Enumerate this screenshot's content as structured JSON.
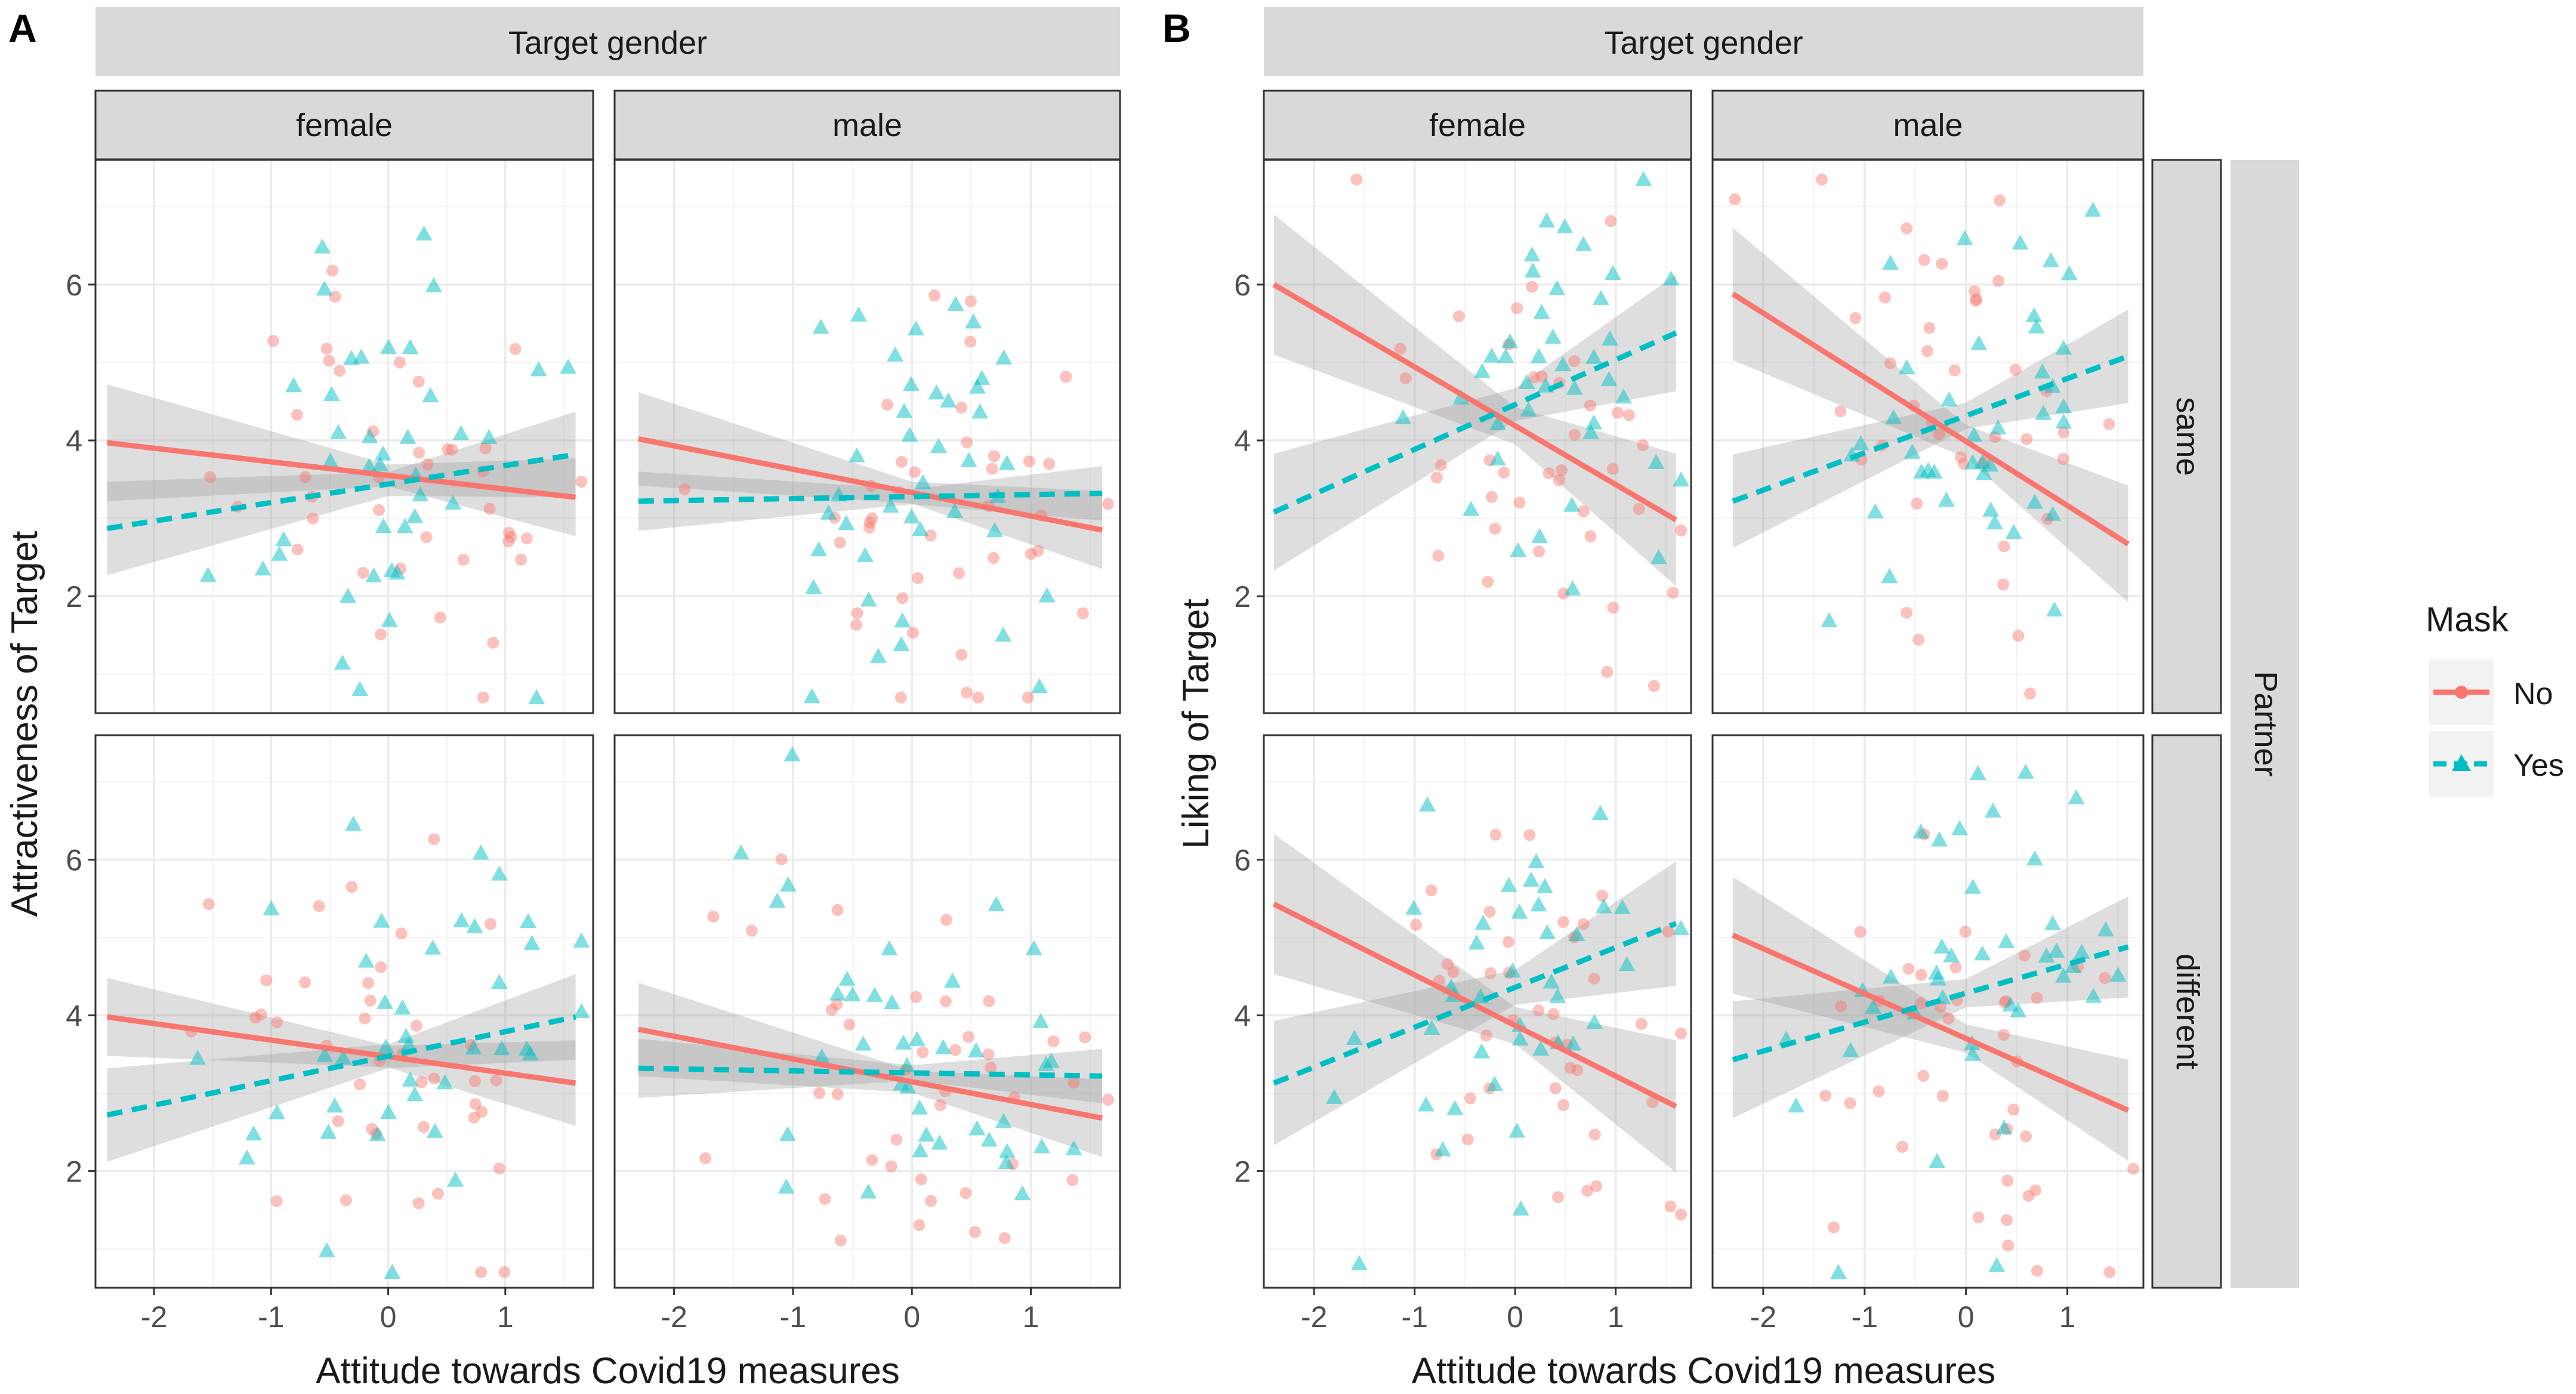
{
  "chart_data": {
    "type": "scatter",
    "title": "",
    "legend": {
      "title": "Mask",
      "placement": "right",
      "entries": [
        {
          "label": "No",
          "color": "#F8766D",
          "marker": "circle",
          "line": "solid"
        },
        {
          "label": "Yes",
          "color": "#00BFC4",
          "marker": "triangle",
          "line": "dashed"
        }
      ]
    },
    "colors": {
      "No": "#F8766D",
      "Yes": "#00BFC4",
      "strip": "#D9D9D9",
      "ribbon": "#999999",
      "grid": "#EBEBEB"
    },
    "x": {
      "label": "Attitude towards Covid19 measures",
      "range": [
        -2.5,
        1.75
      ],
      "ticks": [
        -2,
        -1,
        0,
        1
      ],
      "tick_labels": [
        "-2",
        "-1",
        "0",
        "1"
      ]
    },
    "col_facet": {
      "title": "Target gender",
      "levels": [
        "female",
        "male"
      ]
    },
    "row_facet": {
      "title": "Partner",
      "levels": [
        "same",
        "different"
      ]
    },
    "panels": [
      {
        "id": "A",
        "tag": "A",
        "ylabel": "Attractiveness of Target",
        "ylim": [
          0.5,
          7.6
        ],
        "yticks": [
          2,
          4,
          6
        ],
        "ytick_labels": [
          "2",
          "4",
          "6"
        ],
        "facets": [
          {
            "gender": "female",
            "partner": "same",
            "fits": {
              "No": {
                "x0": -2.4,
                "y0": 3.97,
                "x1": 1.6,
                "y1": 3.27,
                "ci0": 0.75,
                "ci1": 0.5
              },
              "Yes": {
                "x0": -2.4,
                "y0": 2.87,
                "x1": 1.6,
                "y1": 3.82,
                "ci0": 0.6,
                "ci1": 0.55
              }
            }
          },
          {
            "gender": "male",
            "partner": "same",
            "fits": {
              "No": {
                "x0": -2.3,
                "y0": 4.02,
                "x1": 1.6,
                "y1": 2.85,
                "ci0": 0.6,
                "ci1": 0.5
              },
              "Yes": {
                "x0": -2.3,
                "y0": 3.22,
                "x1": 1.6,
                "y1": 3.32,
                "ci0": 0.38,
                "ci1": 0.35
              }
            }
          },
          {
            "gender": "female",
            "partner": "different",
            "fits": {
              "No": {
                "x0": -2.4,
                "y0": 3.98,
                "x1": 1.6,
                "y1": 3.13,
                "ci0": 0.5,
                "ci1": 0.55
              },
              "Yes": {
                "x0": -2.4,
                "y0": 2.72,
                "x1": 1.6,
                "y1": 3.98,
                "ci0": 0.6,
                "ci1": 0.55
              }
            }
          },
          {
            "gender": "male",
            "partner": "different",
            "fits": {
              "No": {
                "x0": -2.3,
                "y0": 3.82,
                "x1": 1.6,
                "y1": 2.68,
                "ci0": 0.6,
                "ci1": 0.5
              },
              "Yes": {
                "x0": -2.3,
                "y0": 3.32,
                "x1": 1.6,
                "y1": 3.22,
                "ci0": 0.38,
                "ci1": 0.35
              }
            }
          }
        ]
      },
      {
        "id": "B",
        "tag": "B",
        "ylabel": "Liking of Target",
        "ylim": [
          0.5,
          7.6
        ],
        "yticks": [
          2,
          4,
          6
        ],
        "ytick_labels": [
          "2",
          "4",
          "6"
        ],
        "facets": [
          {
            "gender": "female",
            "partner": "same",
            "fits": {
              "No": {
                "x0": -2.4,
                "y0": 6.0,
                "x1": 1.6,
                "y1": 2.98,
                "ci0": 0.9,
                "ci1": 0.85
              },
              "Yes": {
                "x0": -2.4,
                "y0": 3.08,
                "x1": 1.6,
                "y1": 5.38,
                "ci0": 0.75,
                "ci1": 0.75
              }
            }
          },
          {
            "gender": "male",
            "partner": "same",
            "fits": {
              "No": {
                "x0": -2.3,
                "y0": 5.88,
                "x1": 1.6,
                "y1": 2.67,
                "ci0": 0.85,
                "ci1": 0.75
              },
              "Yes": {
                "x0": -2.3,
                "y0": 3.22,
                "x1": 1.6,
                "y1": 5.08,
                "ci0": 0.6,
                "ci1": 0.6
              }
            }
          },
          {
            "gender": "female",
            "partner": "different",
            "fits": {
              "No": {
                "x0": -2.4,
                "y0": 5.43,
                "x1": 1.6,
                "y1": 2.83,
                "ci0": 0.9,
                "ci1": 0.85
              },
              "Yes": {
                "x0": -2.4,
                "y0": 3.13,
                "x1": 1.6,
                "y1": 5.18,
                "ci0": 0.8,
                "ci1": 0.8
              }
            }
          },
          {
            "gender": "male",
            "partner": "different",
            "fits": {
              "No": {
                "x0": -2.3,
                "y0": 5.03,
                "x1": 1.6,
                "y1": 2.78,
                "ci0": 0.75,
                "ci1": 0.65
              },
              "Yes": {
                "x0": -2.3,
                "y0": 3.43,
                "x1": 1.6,
                "y1": 4.88,
                "ci0": 0.75,
                "ci1": 0.65
              }
            }
          }
        ]
      }
    ]
  }
}
